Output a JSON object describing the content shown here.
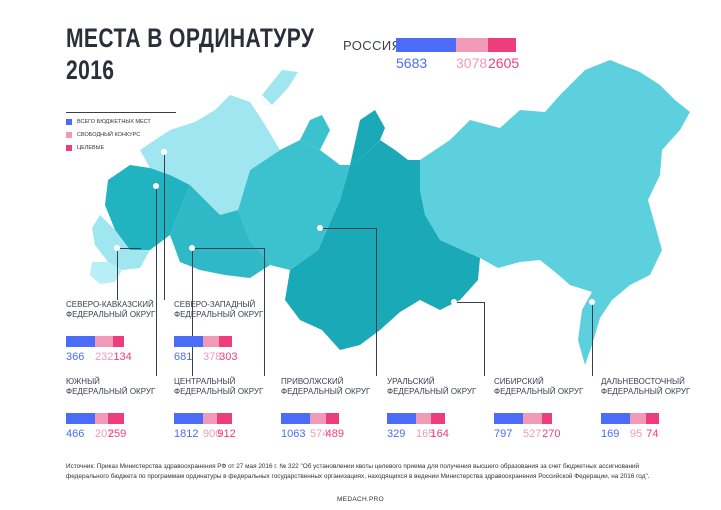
{
  "title_line1": "МЕСТА В ОРДИНАТУРУ",
  "title_line2": "2016",
  "legend": {
    "items": [
      {
        "label": "ВСЕГО БЮДЖЕТНЫХ МЕСТ",
        "color": "#4a6cf7"
      },
      {
        "label": "СВОБОДНЫЙ КОНКУРС",
        "color": "#f19ab7"
      },
      {
        "label": "ЦЕЛЕВЫЕ",
        "color": "#ee3d7c"
      }
    ]
  },
  "colors": {
    "total": "#4a6cf7",
    "free": "#f19ab7",
    "target": "#ee3d7c",
    "map_dark": "#16b0bf",
    "map_mid": "#45c7d6",
    "map_light": "#8fe2ee",
    "map_pale": "#b6eef5"
  },
  "russia": {
    "label": "РОССИЯ",
    "total": 5683,
    "free": 3078,
    "target": 2605
  },
  "chart_data": {
    "type": "bar",
    "title": "МЕСТА В ОРДИНАТУРУ 2016",
    "categories": [
      "РОССИЯ",
      "СЕВЕРО-КАВКАЗСКИЙ ФЕДЕРАЛЬНЫЙ ОКРУГ",
      "СЕВЕРО-ЗАПАДНЫЙ ФЕДЕРАЛЬНЫЙ ОКРУГ",
      "ЮЖНЫЙ ФЕДЕРАЛЬНЫЙ ОКРУГ",
      "ЦЕНТРАЛЬНЫЙ ФЕДЕРАЛЬНЫЙ ОКРУГ",
      "ПРИВОЛЖСКИЙ ФЕДЕРАЛЬНЫЙ ОКРУГ",
      "УРАЛЬСКИЙ ФЕДЕРАЛЬНЫЙ ОКРУГ",
      "СИБИРСКИЙ ФЕДЕРАЛЬНЫЙ ОКРУГ",
      "ДАЛЬНЕВОСТОЧНЫЙ ФЕДЕРАЛЬНЫЙ ОКРУГ"
    ],
    "series": [
      {
        "name": "ВСЕГО БЮДЖЕТНЫХ МЕСТ",
        "values": [
          5683,
          366,
          681,
          466,
          1812,
          1063,
          329,
          797,
          169
        ]
      },
      {
        "name": "СВОБОДНЫЙ КОНКУРС",
        "values": [
          3078,
          232,
          378,
          207,
          900,
          574,
          165,
          527,
          95
        ]
      },
      {
        "name": "ЦЕЛЕВЫЕ",
        "values": [
          2605,
          134,
          303,
          259,
          912,
          489,
          164,
          270,
          74
        ]
      }
    ]
  },
  "districts": [
    {
      "id": "skfo",
      "line1": "СЕВЕРО-КАВКАЗСКИЙ",
      "line2": "ФЕДЕРАЛЬНЫЙ ОКРУГ",
      "total": 366,
      "free": 232,
      "target": 134
    },
    {
      "id": "szfo",
      "line1": "СЕВЕРО-ЗАПАДНЫЙ",
      "line2": "ФЕДЕРАЛЬНЫЙ ОКРУГ",
      "total": 681,
      "free": 378,
      "target": 303
    },
    {
      "id": "ufo",
      "line1": "ЮЖНЫЙ",
      "line2": "ФЕДЕРАЛЬНЫЙ ОКРУГ",
      "total": 466,
      "free": 207,
      "target": 259
    },
    {
      "id": "cfo",
      "line1": "ЦЕНТРАЛЬНЫЙ",
      "line2": "ФЕДЕРАЛЬНЫЙ ОКРУГ",
      "total": 1812,
      "free": 900,
      "target": 912
    },
    {
      "id": "pfo",
      "line1": "ПРИВОЛЖСКИЙ",
      "line2": "ФЕДЕРАЛЬНЫЙ ОКРУГ",
      "total": 1063,
      "free": 574,
      "target": 489
    },
    {
      "id": "urfo",
      "line1": "УРАЛЬСКИЙ",
      "line2": "ФЕДЕРАЛЬНЫЙ ОКРУГ",
      "total": 329,
      "free": 165,
      "target": 164
    },
    {
      "id": "sfo",
      "line1": "СИБИРСКИЙ",
      "line2": "ФЕДЕРАЛЬНЫЙ ОКРУГ",
      "total": 797,
      "free": 527,
      "target": 270
    },
    {
      "id": "dfo",
      "line1": "ДАЛЬНЕВОСТОЧНЫЙ",
      "line2": "ФЕДЕРАЛЬНЫЙ ОКРУГ",
      "total": 169,
      "free": 95,
      "target": 74
    }
  ],
  "source": "Источник: Приказ Министерства здравоохранения РФ от 27 мая 2016 г. № 322 \"Об установлении квоты целевого приема для получения высшего образования за счет бюджетных ассигнований федерального бюджета по программам ординатуры в федеральных государственных организациях, находящихся в ведении Министерства здравоохранения Российской Федерации, на 2016 год\".",
  "footer": "MEDACH.PRO"
}
